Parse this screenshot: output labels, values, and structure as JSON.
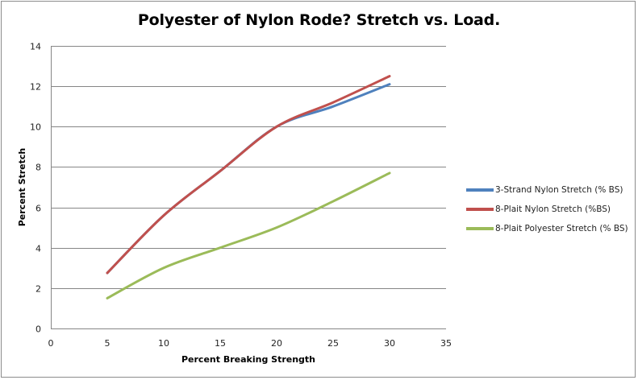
{
  "chart_data": {
    "type": "line",
    "title": "Polyester of Nylon Rode? Stretch vs. Load.",
    "xlabel": "Percent Breaking Strength",
    "ylabel": "Percent Stretch",
    "xlim": [
      0,
      35
    ],
    "ylim": [
      0,
      14
    ],
    "x_ticks": [
      0,
      5,
      10,
      15,
      20,
      25,
      30,
      35
    ],
    "y_ticks": [
      0,
      2,
      4,
      6,
      8,
      10,
      12,
      14
    ],
    "grid": {
      "horizontal": true,
      "vertical": false
    },
    "legend_position": "right",
    "smooth": true,
    "x": [
      5,
      10,
      15,
      20,
      25,
      30
    ],
    "series": [
      {
        "name": "3-Strand Nylon Stretch (% BS)",
        "color": "#4F81BD",
        "values": [
          2.75,
          5.6,
          7.8,
          10.0,
          11.0,
          12.1
        ]
      },
      {
        "name": "8-Plait Nylon Stretch (%BS)",
        "color": "#C0504D",
        "values": [
          2.75,
          5.6,
          7.8,
          10.0,
          11.2,
          12.5
        ]
      },
      {
        "name": "8-Plait Polyester Stretch (% BS)",
        "color": "#9BBB59",
        "values": [
          1.5,
          3.0,
          4.0,
          5.0,
          6.3,
          7.7
        ]
      }
    ]
  }
}
